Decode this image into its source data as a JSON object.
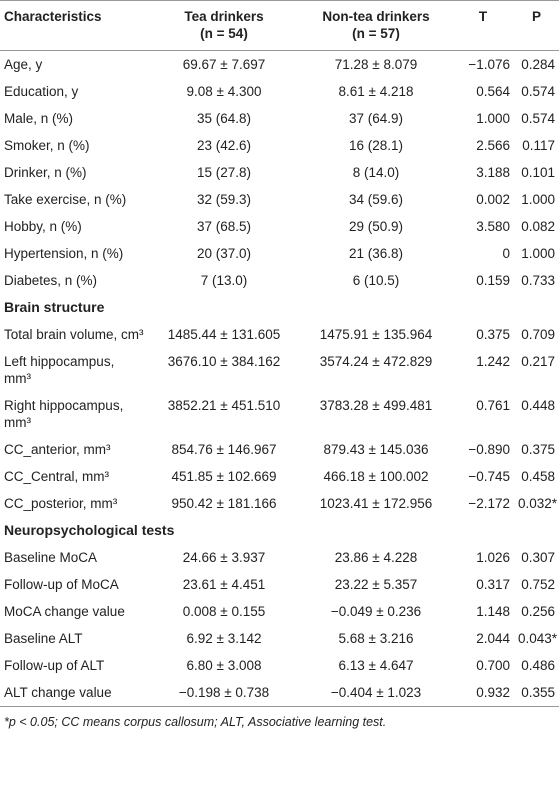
{
  "table": {
    "header": [
      {
        "label": "Characteristics"
      },
      {
        "label": "Tea drinkers",
        "sub": "(n = 54)"
      },
      {
        "label": "Non-tea drinkers",
        "sub": "(n = 57)"
      },
      {
        "label": "T"
      },
      {
        "label": "P"
      }
    ],
    "rows": [
      [
        "Age, y",
        "69.67 ± 7.697",
        "71.28 ± 8.079",
        "−1.076",
        "0.284"
      ],
      [
        "Education, y",
        "9.08 ± 4.300",
        "8.61 ± 4.218",
        "0.564",
        "0.574"
      ],
      [
        "Male, n (%)",
        "35 (64.8)",
        "37 (64.9)",
        "1.000",
        "0.574"
      ],
      [
        "Smoker, n (%)",
        "23 (42.6)",
        "16 (28.1)",
        "2.566",
        "0.117"
      ],
      [
        "Drinker, n (%)",
        "15 (27.8)",
        "8 (14.0)",
        "3.188",
        "0.101"
      ],
      [
        "Take exercise, n (%)",
        "32 (59.3)",
        "34 (59.6)",
        "0.002",
        "1.000"
      ],
      [
        "Hobby, n (%)",
        "37 (68.5)",
        "29 (50.9)",
        "3.580",
        "0.082"
      ],
      [
        "Hypertension, n (%)",
        "20 (37.0)",
        "21 (36.8)",
        "0",
        "1.000"
      ],
      [
        "Diabetes, n (%)",
        "7 (13.0)",
        "6 (10.5)",
        "0.159",
        "0.733"
      ],
      [
        "Brain structure"
      ],
      [
        "Total brain volume, cm³",
        "1485.44 ± 131.605",
        "1475.91 ± 135.964",
        "0.375",
        "0.709"
      ],
      [
        "Left hippocampus, mm³",
        "3676.10 ± 384.162",
        "3574.24 ± 472.829",
        "1.242",
        "0.217"
      ],
      [
        "Right hippocampus, mm³",
        "3852.21 ± 451.510",
        "3783.28 ± 499.481",
        "0.761",
        "0.448"
      ],
      [
        "CC_anterior, mm³",
        "854.76 ± 146.967",
        "879.43 ± 145.036",
        "−0.890",
        "0.375"
      ],
      [
        "CC_Central, mm³",
        "451.85 ± 102.669",
        "466.18 ± 100.002",
        "−0.745",
        "0.458"
      ],
      [
        "CC_posterior, mm³",
        "950.42 ± 181.166",
        "1023.41 ± 172.956",
        "−2.172",
        "0.032*"
      ],
      [
        "Neuropsychological tests"
      ],
      [
        "Baseline MoCA",
        "24.66 ± 3.937",
        "23.86 ± 4.228",
        "1.026",
        "0.307"
      ],
      [
        "Follow-up of MoCA",
        "23.61 ± 4.451",
        "23.22 ± 5.357",
        "0.317",
        "0.752"
      ],
      [
        "MoCA change value",
        "0.008 ± 0.155",
        "−0.049 ± 0.236",
        "1.148",
        "0.256"
      ],
      [
        "Baseline ALT",
        "6.92 ± 3.142",
        "5.68 ± 3.216",
        "2.044",
        "0.043*"
      ],
      [
        "Follow-up of ALT",
        "6.80 ± 3.008",
        "6.13 ± 4.647",
        "0.700",
        "0.486"
      ],
      [
        "ALT change value",
        "−0.198 ± 0.738",
        "−0.404 ± 1.023",
        "0.932",
        "0.355"
      ]
    ],
    "footnote": "*p < 0.05; CC means corpus callosum; ALT, Associative learning test."
  }
}
